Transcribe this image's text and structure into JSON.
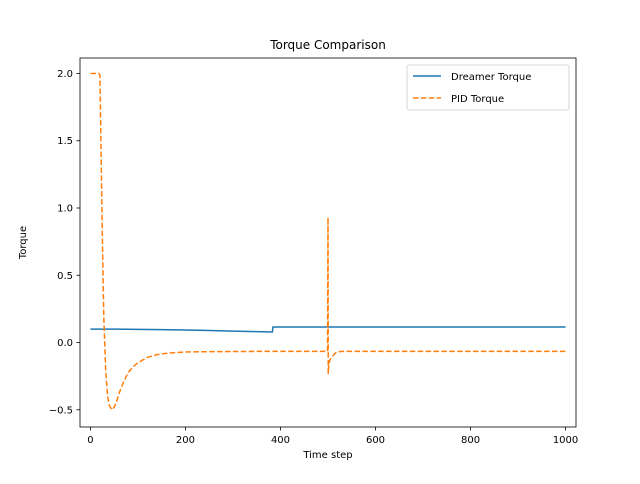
{
  "chart_data": {
    "type": "line",
    "title": "Torque Comparison",
    "xlabel": "Time step",
    "ylabel": "Torque",
    "xlim": [
      -22,
      1022
    ],
    "ylim": [
      -0.628,
      2.115
    ],
    "xticks": [
      0,
      200,
      400,
      600,
      800,
      1000
    ],
    "yticks": [
      -0.5,
      0.0,
      0.5,
      1.0,
      1.5,
      2.0
    ],
    "xtick_labels": [
      "0",
      "200",
      "400",
      "600",
      "800",
      "1000"
    ],
    "ytick_labels": [
      "−0.5",
      "0.0",
      "0.5",
      "1.0",
      "1.5",
      "2.0"
    ],
    "grid": false,
    "legend_position": "top-right",
    "series": [
      {
        "name": "Dreamer Torque",
        "color": "#1f77b4",
        "style": "solid",
        "x": [
          0,
          50,
          100,
          150,
          200,
          250,
          300,
          350,
          383,
          384,
          450,
          500,
          600,
          700,
          800,
          900,
          1000
        ],
        "y": [
          0.1,
          0.1,
          0.098,
          0.096,
          0.093,
          0.089,
          0.085,
          0.081,
          0.078,
          0.115,
          0.115,
          0.115,
          0.115,
          0.115,
          0.115,
          0.115,
          0.115
        ]
      },
      {
        "name": "PID Torque",
        "color": "#ff7f0e",
        "style": "dashed",
        "x": [
          0,
          10,
          18,
          20,
          22,
          25,
          28,
          32,
          36,
          40,
          45,
          50,
          55,
          60,
          70,
          80,
          90,
          100,
          120,
          140,
          160,
          180,
          200,
          250,
          300,
          350,
          400,
          450,
          499,
          500,
          500.5,
          501,
          502,
          504,
          507,
          510,
          515,
          520,
          530,
          540,
          550,
          600,
          700,
          800,
          900,
          1000
        ],
        "y": [
          2.0,
          2.0,
          2.0,
          1.98,
          1.5,
          0.8,
          0.2,
          -0.2,
          -0.4,
          -0.47,
          -0.5,
          -0.48,
          -0.44,
          -0.38,
          -0.29,
          -0.22,
          -0.18,
          -0.15,
          -0.11,
          -0.09,
          -0.08,
          -0.075,
          -0.07,
          -0.068,
          -0.067,
          -0.066,
          -0.066,
          -0.066,
          -0.066,
          0.93,
          -0.23,
          -0.2,
          -0.16,
          -0.13,
          -0.11,
          -0.1,
          -0.08,
          -0.07,
          -0.066,
          -0.066,
          -0.066,
          -0.066,
          -0.066,
          -0.066,
          -0.066,
          -0.066
        ]
      }
    ]
  }
}
